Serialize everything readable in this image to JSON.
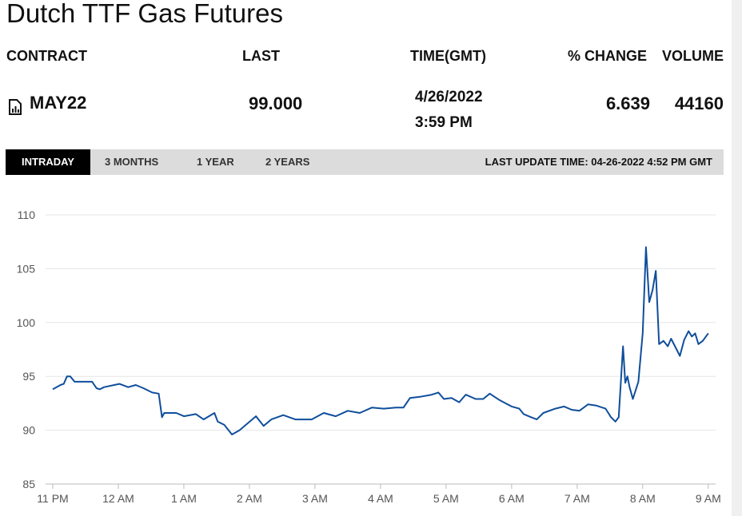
{
  "header": {
    "title": "Dutch TTF Gas Futures",
    "columns": [
      "CONTRACT",
      "LAST",
      "TIME(GMT)",
      "% CHANGE",
      "VOLUME"
    ],
    "row": {
      "contract": "MAY22",
      "last": "99.000",
      "date": "4/26/2022",
      "time": "3:59 PM",
      "change": "6.639",
      "volume": "44160"
    },
    "tabs": [
      "INTRADAY",
      "3 MONTHS",
      "1 YEAR",
      "2 YEARS"
    ],
    "last_update": "LAST UPDATE TIME: 04-26-2022 4:52 PM GMT"
  },
  "chart_data": {
    "type": "line",
    "color": "#0f4e9b",
    "x": [
      0,
      7,
      10,
      13,
      16,
      20,
      32,
      36,
      40,
      43,
      47,
      61,
      69,
      76,
      83,
      91,
      97,
      100,
      102,
      113,
      120,
      131,
      138,
      148,
      151,
      157,
      164,
      171,
      179,
      186,
      193,
      200,
      211,
      222,
      237,
      248,
      259,
      270,
      281,
      292,
      303,
      314,
      321,
      327,
      336,
      347,
      353,
      358,
      365,
      372,
      378,
      387,
      394,
      400,
      409,
      420,
      427,
      431,
      438,
      443,
      449,
      460,
      468,
      475,
      482,
      490,
      497,
      506,
      511,
      515,
      518,
      522,
      524,
      526,
      528,
      531,
      536,
      540,
      543,
      546,
      549,
      552,
      555,
      559,
      563,
      566,
      571,
      574,
      578,
      582,
      585,
      588,
      591,
      595,
      600
    ],
    "values": [
      93.8,
      94.2,
      94.3,
      95.0,
      95.0,
      94.5,
      94.5,
      94.5,
      93.9,
      93.8,
      94.0,
      94.3,
      94.0,
      94.2,
      93.9,
      93.5,
      93.4,
      91.2,
      91.6,
      91.6,
      91.3,
      91.5,
      91.0,
      91.6,
      90.8,
      90.5,
      89.6,
      90.0,
      90.7,
      91.3,
      90.4,
      91.0,
      91.4,
      91.0,
      91.0,
      91.6,
      91.3,
      91.8,
      91.6,
      92.1,
      92.0,
      92.1,
      92.1,
      93.0,
      93.1,
      93.3,
      93.5,
      92.9,
      93.0,
      92.6,
      93.3,
      92.9,
      92.9,
      93.4,
      92.8,
      92.2,
      92.0,
      91.5,
      91.2,
      91.0,
      91.6,
      92.0,
      92.2,
      91.9,
      91.8,
      92.4,
      92.3,
      92.0,
      91.2,
      90.8,
      91.2,
      97.8,
      94.4,
      95.0,
      94.0,
      92.9,
      94.5,
      99.0,
      107.0,
      101.9,
      103.0,
      104.8,
      98.0,
      98.3,
      97.8,
      98.5,
      97.5,
      96.9,
      98.4,
      99.2,
      98.7,
      99.0,
      98.0,
      98.3,
      99.0
    ],
    "xlim": [
      0,
      606
    ],
    "ylim": [
      85,
      110
    ],
    "yticks": [
      85,
      90,
      95,
      100,
      105,
      110
    ],
    "xticks": [
      {
        "value": 0,
        "label": "11 PM"
      },
      {
        "value": 60,
        "label": "12 AM"
      },
      {
        "value": 120,
        "label": "1 AM"
      },
      {
        "value": 180,
        "label": "2 AM"
      },
      {
        "value": 240,
        "label": "3 AM"
      },
      {
        "value": 300,
        "label": "4 AM"
      },
      {
        "value": 360,
        "label": "5 AM"
      },
      {
        "value": 420,
        "label": "6 AM"
      },
      {
        "value": 480,
        "label": "7 AM"
      },
      {
        "value": 540,
        "label": "8 AM"
      },
      {
        "value": 600,
        "label": "9 AM"
      }
    ],
    "grid": true
  }
}
